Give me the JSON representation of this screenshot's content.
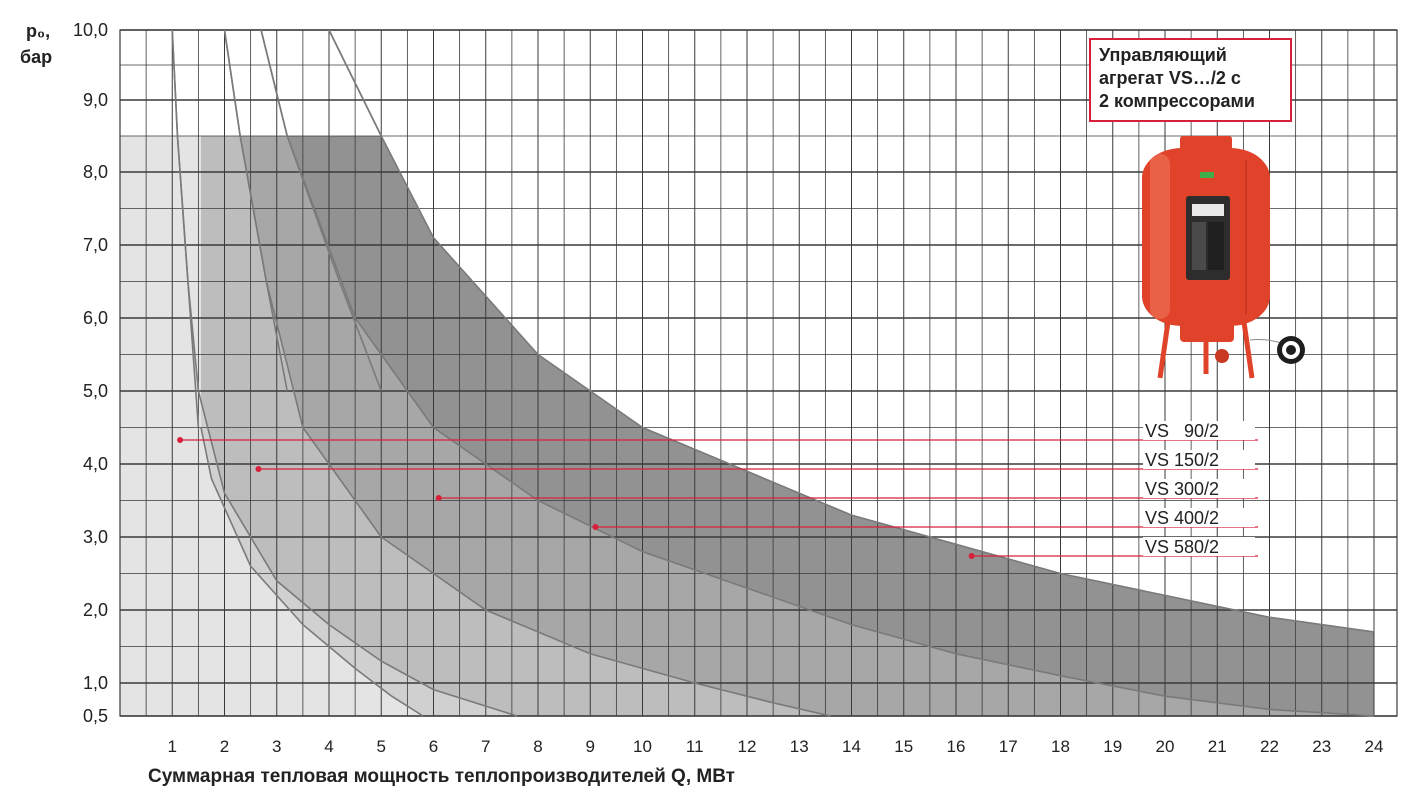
{
  "y_axis": {
    "symbol": "p₀,",
    "unit": "бар"
  },
  "x_axis_label": "Суммарная тепловая мощность теплопроизводителей Q, МВт",
  "note": {
    "line1": "Управляющий",
    "line2": "агрегат VS…/2 с",
    "line3": "2 компрессорами"
  },
  "product_image": "red-expansion-vessel-icon",
  "colors": {
    "accent_red": "#d8203a",
    "vessel_red": "#e0432a",
    "grid": "#3a3a3a",
    "zones": [
      "#e4e4e4",
      "#d0d0d0",
      "#bdbdbd",
      "#a7a7a7",
      "#929292"
    ]
  },
  "chart_data": {
    "type": "area",
    "xlabel": "Суммарная тепловая мощность теплопроизводителей Q, МВт",
    "ylabel": "p₀, бар",
    "xlim": [
      0,
      24
    ],
    "ylim": [
      0.5,
      10.0
    ],
    "x_ticks": [
      "1",
      "2",
      "3",
      "4",
      "5",
      "6",
      "7",
      "8",
      "9",
      "10",
      "11",
      "12",
      "13",
      "14",
      "15",
      "16",
      "17",
      "18",
      "19",
      "20",
      "21",
      "22",
      "23",
      "24"
    ],
    "y_ticks": [
      {
        "value": 0.5,
        "label": "0,5"
      },
      {
        "value": 1.0,
        "label": "1,0"
      },
      {
        "value": 2.0,
        "label": "2,0"
      },
      {
        "value": 3.0,
        "label": "3,0"
      },
      {
        "value": 4.0,
        "label": "4,0"
      },
      {
        "value": 5.0,
        "label": "5,0"
      },
      {
        "value": 6.0,
        "label": "6,0"
      },
      {
        "value": 7.0,
        "label": "7,0"
      },
      {
        "value": 8.0,
        "label": "8,0"
      },
      {
        "value": 9.0,
        "label": "9,0"
      },
      {
        "value": 10.0,
        "label": "10,0"
      }
    ],
    "grid": true,
    "max_pressure_band": 8.5,
    "series": [
      {
        "name": "VS   90/2",
        "label_point": [
          1.15,
          4.3
        ],
        "boundary": [
          [
            1.55,
            4.5
          ],
          [
            1.75,
            3.8
          ],
          [
            2.5,
            2.6
          ],
          [
            3.5,
            1.8
          ],
          [
            4.5,
            1.2
          ],
          [
            5.2,
            0.8
          ],
          [
            5.8,
            0.5
          ]
        ],
        "upper_curve": [
          [
            1.0,
            10.0
          ],
          [
            1.1,
            8.5
          ],
          [
            1.3,
            6.5
          ],
          [
            1.5,
            4.5
          ]
        ]
      },
      {
        "name": "VS 150/2",
        "label_point": [
          2.65,
          3.9
        ],
        "boundary": [
          [
            1.0,
            10.0
          ],
          [
            1.1,
            8.5
          ],
          [
            1.3,
            6.5
          ],
          [
            1.5,
            5.0
          ],
          [
            2.0,
            3.6
          ],
          [
            3.0,
            2.4
          ],
          [
            4.0,
            1.8
          ],
          [
            5.0,
            1.3
          ],
          [
            6.0,
            0.9
          ],
          [
            7.0,
            0.65
          ],
          [
            7.6,
            0.5
          ]
        ],
        "upper_curve": [
          [
            2.0,
            10.0
          ],
          [
            2.3,
            8.5
          ],
          [
            2.8,
            6.5
          ],
          [
            3.2,
            5.0
          ]
        ]
      },
      {
        "name": "VS 300/2",
        "label_point": [
          6.1,
          3.5
        ],
        "boundary": [
          [
            2.0,
            10.0
          ],
          [
            2.3,
            8.5
          ],
          [
            2.8,
            6.5
          ],
          [
            3.5,
            4.5
          ],
          [
            5.0,
            3.0
          ],
          [
            7.0,
            2.0
          ],
          [
            9.0,
            1.4
          ],
          [
            11.0,
            1.0
          ],
          [
            12.5,
            0.7
          ],
          [
            13.6,
            0.5
          ]
        ],
        "upper_curve": [
          [
            2.7,
            10.0
          ],
          [
            3.2,
            8.5
          ],
          [
            4.2,
            6.5
          ],
          [
            5.0,
            5.0
          ]
        ]
      },
      {
        "name": "VS 400/2",
        "label_point": [
          9.1,
          3.1
        ],
        "boundary": [
          [
            2.7,
            10.0
          ],
          [
            3.2,
            8.5
          ],
          [
            4.5,
            6.0
          ],
          [
            6.0,
            4.5
          ],
          [
            8.0,
            3.5
          ],
          [
            10.0,
            2.8
          ],
          [
            12.0,
            2.3
          ],
          [
            14.0,
            1.8
          ],
          [
            16.0,
            1.4
          ],
          [
            18.0,
            1.1
          ],
          [
            20.0,
            0.8
          ],
          [
            22.0,
            0.6
          ],
          [
            24.0,
            0.5
          ]
        ],
        "upper_curve": [
          [
            4.0,
            10.0
          ],
          [
            5.0,
            8.5
          ]
        ]
      },
      {
        "name": "VS 580/2",
        "label_point": [
          16.3,
          2.7
        ],
        "boundary": [
          [
            4.0,
            10.0
          ],
          [
            5.0,
            8.5
          ],
          [
            6.0,
            7.1
          ],
          [
            8.0,
            5.5
          ],
          [
            10.0,
            4.5
          ],
          [
            12.0,
            3.9
          ],
          [
            14.0,
            3.3
          ],
          [
            16.0,
            2.9
          ],
          [
            18.0,
            2.5
          ],
          [
            20.0,
            2.2
          ],
          [
            22.0,
            1.9
          ],
          [
            24.0,
            1.7
          ]
        ],
        "upper_curve": []
      }
    ]
  }
}
